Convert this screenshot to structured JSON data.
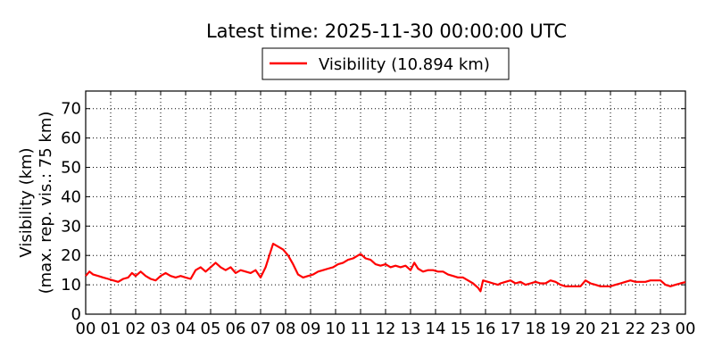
{
  "title": "Latest time: 2025-11-30 00:00:00 UTC",
  "chart_data": {
    "type": "line",
    "title": "Latest time: 2025-11-30 00:00:00 UTC",
    "ylabel_line1": "Visibility (km)",
    "ylabel_line2": "(max. rep. vis.: 75 km)",
    "xlabel": "",
    "xlim": [
      0,
      24
    ],
    "ylim": [
      0,
      76
    ],
    "grid": true,
    "legend_position": "top-center",
    "x_tick_labels": [
      "00",
      "01",
      "02",
      "03",
      "04",
      "05",
      "06",
      "07",
      "08",
      "09",
      "10",
      "11",
      "12",
      "13",
      "14",
      "15",
      "16",
      "17",
      "18",
      "19",
      "20",
      "21",
      "22",
      "23",
      "00"
    ],
    "y_ticks": [
      0,
      10,
      20,
      30,
      40,
      50,
      60,
      70
    ],
    "series": [
      {
        "name": "Visibility (10.894 km)",
        "color": "#ff0000",
        "x": [
          0,
          0.15,
          0.3,
          0.5,
          0.7,
          0.9,
          1.1,
          1.3,
          1.5,
          1.7,
          1.85,
          2.0,
          2.2,
          2.4,
          2.6,
          2.8,
          3.0,
          3.2,
          3.4,
          3.6,
          3.8,
          4.0,
          4.2,
          4.4,
          4.6,
          4.8,
          5.0,
          5.2,
          5.4,
          5.6,
          5.8,
          6.0,
          6.2,
          6.4,
          6.6,
          6.8,
          7.0,
          7.2,
          7.35,
          7.5,
          7.7,
          7.9,
          8.1,
          8.3,
          8.5,
          8.7,
          8.9,
          9.1,
          9.3,
          9.5,
          9.7,
          9.9,
          10.1,
          10.3,
          10.5,
          10.7,
          10.9,
          11.0,
          11.2,
          11.4,
          11.6,
          11.8,
          12.0,
          12.2,
          12.4,
          12.6,
          12.8,
          13.0,
          13.15,
          13.3,
          13.5,
          13.7,
          13.9,
          14.1,
          14.3,
          14.5,
          14.7,
          14.9,
          15.1,
          15.3,
          15.5,
          15.7,
          15.8,
          15.9,
          16.1,
          16.3,
          16.5,
          16.6,
          16.8,
          17.0,
          17.2,
          17.4,
          17.6,
          17.8,
          18.0,
          18.2,
          18.4,
          18.6,
          18.8,
          19.0,
          19.2,
          19.4,
          19.6,
          19.8,
          20.0,
          20.2,
          20.4,
          20.6,
          20.8,
          21.0,
          21.2,
          21.4,
          21.6,
          21.8,
          22.0,
          22.2,
          22.4,
          22.6,
          22.8,
          23.0,
          23.2,
          23.4,
          23.6,
          23.8,
          24.0
        ],
        "y": [
          13,
          14.5,
          13.5,
          13,
          12.5,
          12,
          11.5,
          11,
          12,
          12.5,
          14,
          13,
          14.5,
          13,
          12,
          11.5,
          13,
          14,
          13,
          12.5,
          13,
          12.5,
          12,
          15,
          16,
          14.5,
          16,
          17.5,
          16,
          15,
          16,
          14,
          15,
          14.5,
          14,
          15,
          12.5,
          16,
          20,
          24,
          23,
          22,
          20,
          17,
          13.5,
          12.5,
          13,
          13.5,
          14.5,
          15,
          15.5,
          16,
          17,
          17.5,
          18.5,
          19,
          20,
          20.5,
          19,
          18.5,
          17,
          16.5,
          17,
          16,
          16.5,
          16,
          16.5,
          15,
          17.5,
          15.5,
          14.5,
          15,
          15,
          14.5,
          14.5,
          13.5,
          13,
          12.5,
          12.5,
          11.5,
          10.5,
          9,
          7.8,
          11.5,
          11,
          10.5,
          10,
          10.5,
          11,
          11.5,
          10.5,
          11,
          10,
          10.5,
          11,
          10.5,
          10.5,
          11.5,
          11,
          10,
          9.5,
          9.5,
          9.5,
          9.5,
          11.5,
          10.5,
          10,
          9.5,
          9.5,
          9.5,
          10,
          10.5,
          11,
          11.5,
          11,
          11,
          11,
          11.5,
          11.5,
          11.5,
          10,
          9.5,
          10,
          10.5,
          10.9
        ]
      }
    ]
  }
}
